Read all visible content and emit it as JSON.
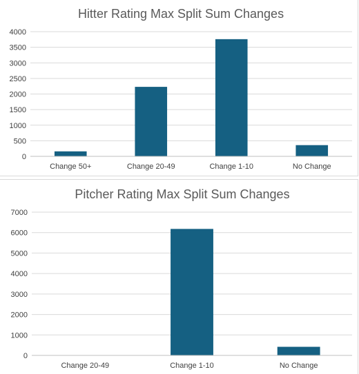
{
  "chart_data": [
    {
      "type": "bar",
      "title": "Hitter Rating Max Split Sum Changes",
      "xlabel": "",
      "ylabel": "",
      "categories": [
        "Change 50+",
        "Change 20-49",
        "Change 1-10",
        "No Change"
      ],
      "values": [
        160,
        2230,
        3760,
        360
      ],
      "ylim": [
        0,
        4000
      ],
      "yticks": [
        0,
        500,
        1000,
        1500,
        2000,
        2500,
        3000,
        3500,
        4000
      ],
      "grid": true,
      "legend": "none",
      "bar_color": "#156082"
    },
    {
      "type": "bar",
      "title": "Pitcher Rating Max Split Sum Changes",
      "xlabel": "",
      "ylabel": "",
      "categories": [
        "Change 20-49",
        "Change 1-10",
        "No Change"
      ],
      "values": [
        0,
        6180,
        420
      ],
      "ylim": [
        0,
        7000
      ],
      "yticks": [
        0,
        1000,
        2000,
        3000,
        4000,
        5000,
        6000,
        7000
      ],
      "grid": true,
      "legend": "none",
      "bar_color": "#156082"
    }
  ]
}
